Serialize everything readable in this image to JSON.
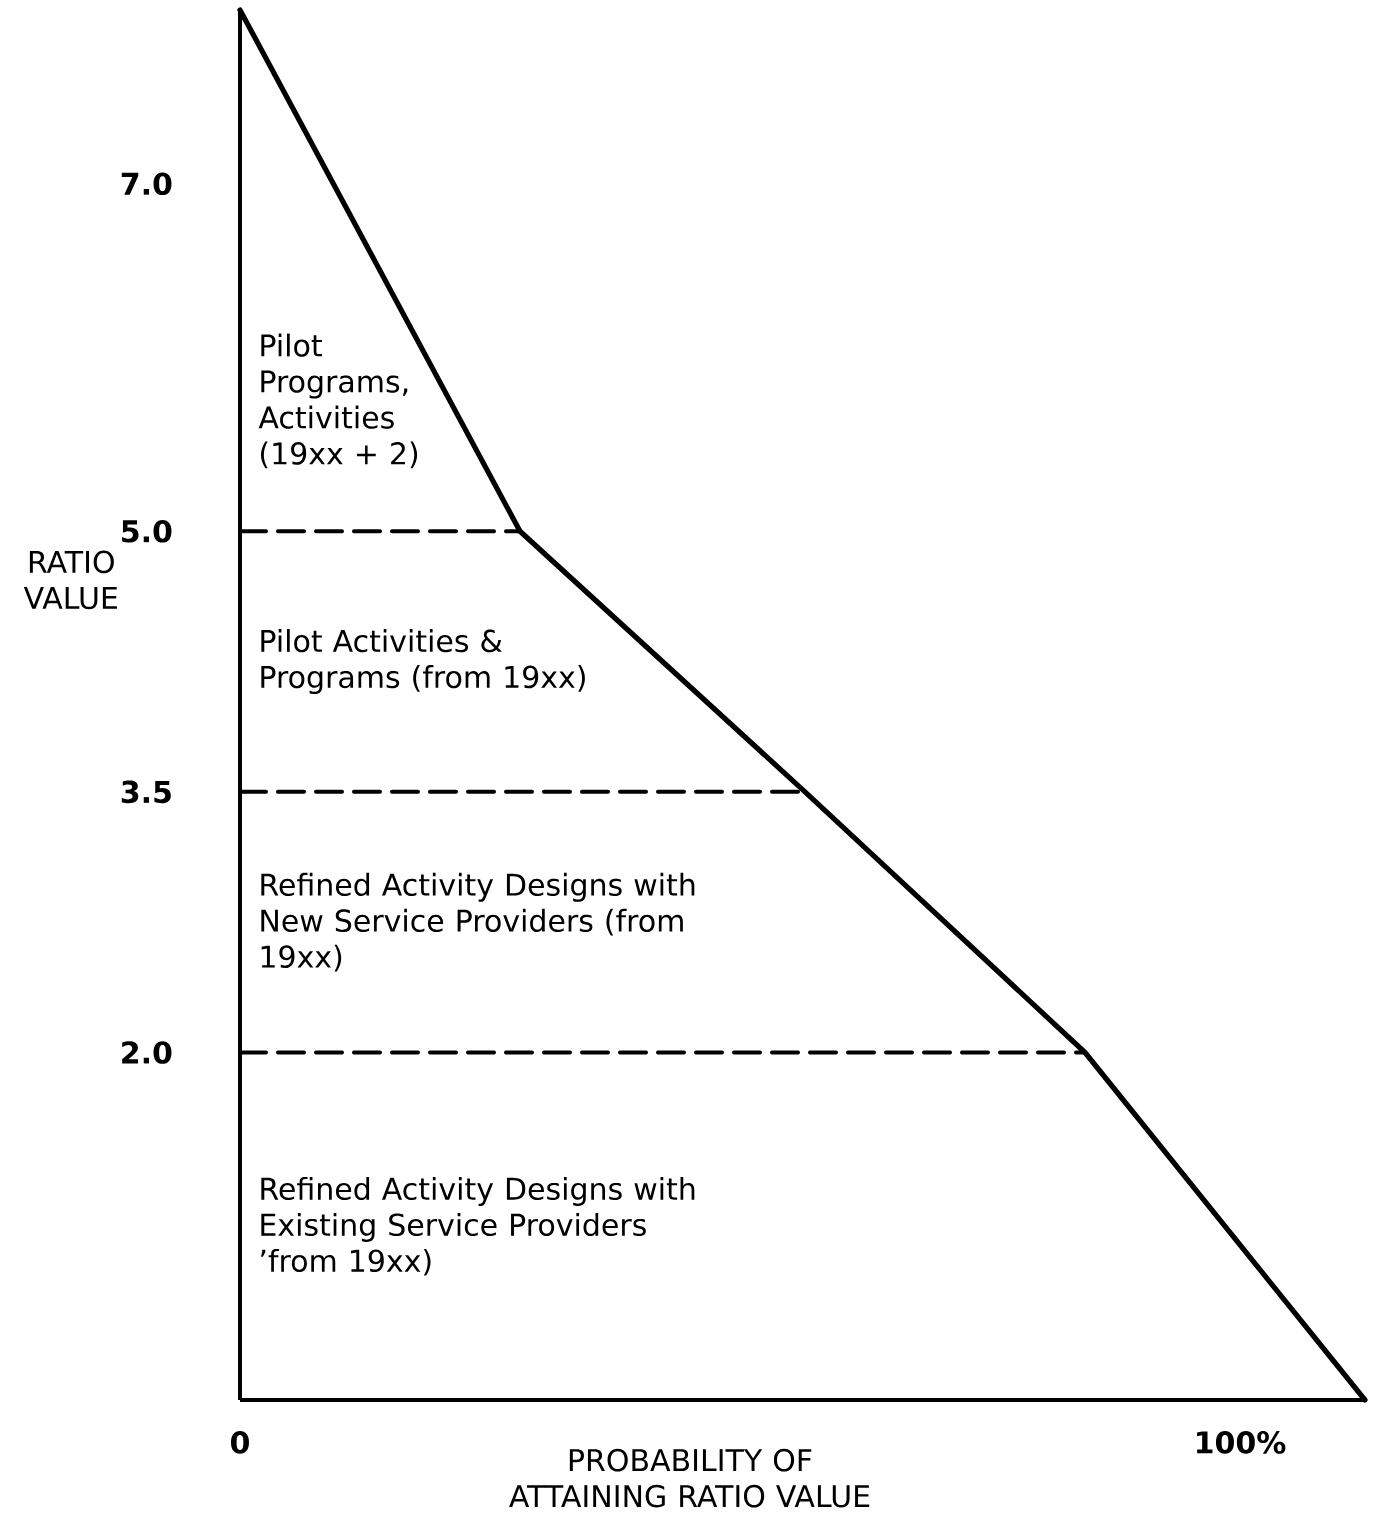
{
  "chart_data": {
    "type": "line",
    "xlabel": "PROBABILITY OF ATTAINING RATIO VALUE",
    "ylabel": "RATIO VALUE",
    "xlim": [
      0,
      112.5
    ],
    "ylim": [
      0,
      8.0
    ],
    "xticks": [
      0,
      {
        "value": 100,
        "label": "100%"
      }
    ],
    "yticks": [
      {
        "value": 2.0,
        "label": "2.0"
      },
      {
        "value": 3.5,
        "label": "3.5"
      },
      {
        "value": 5.0,
        "label": "5.0"
      },
      {
        "value": 7.0,
        "label": "7.0"
      }
    ],
    "grid": false,
    "series": [
      {
        "color": "#000000",
        "line_style": "solid",
        "x": [
          0,
          28,
          56.5,
          84.5,
          112.5
        ],
        "values": [
          8.0,
          5.0,
          3.5,
          2.0,
          0
        ]
      },
      {
        "color": "#000000",
        "line_style": "dashed",
        "x": [
          0,
          28
        ],
        "values": [
          5.0,
          5.0
        ]
      },
      {
        "color": "#000000",
        "line_style": "dashed",
        "x": [
          0,
          56.5
        ],
        "values": [
          3.5,
          3.5
        ]
      },
      {
        "color": "#000000",
        "line_style": "dashed",
        "x": [
          0,
          84.5
        ],
        "values": [
          2.0,
          2.0
        ]
      }
    ],
    "annotations": [
      "Pilot Programs, Activities (19xx + 2)",
      "Pilot Activities & Programs (from 19xx)",
      "Refined Activity Designs with New Service Providers (from 19xx)",
      "Refined Activity Designs with Existing Service Providers ’from 19xx)"
    ]
  }
}
